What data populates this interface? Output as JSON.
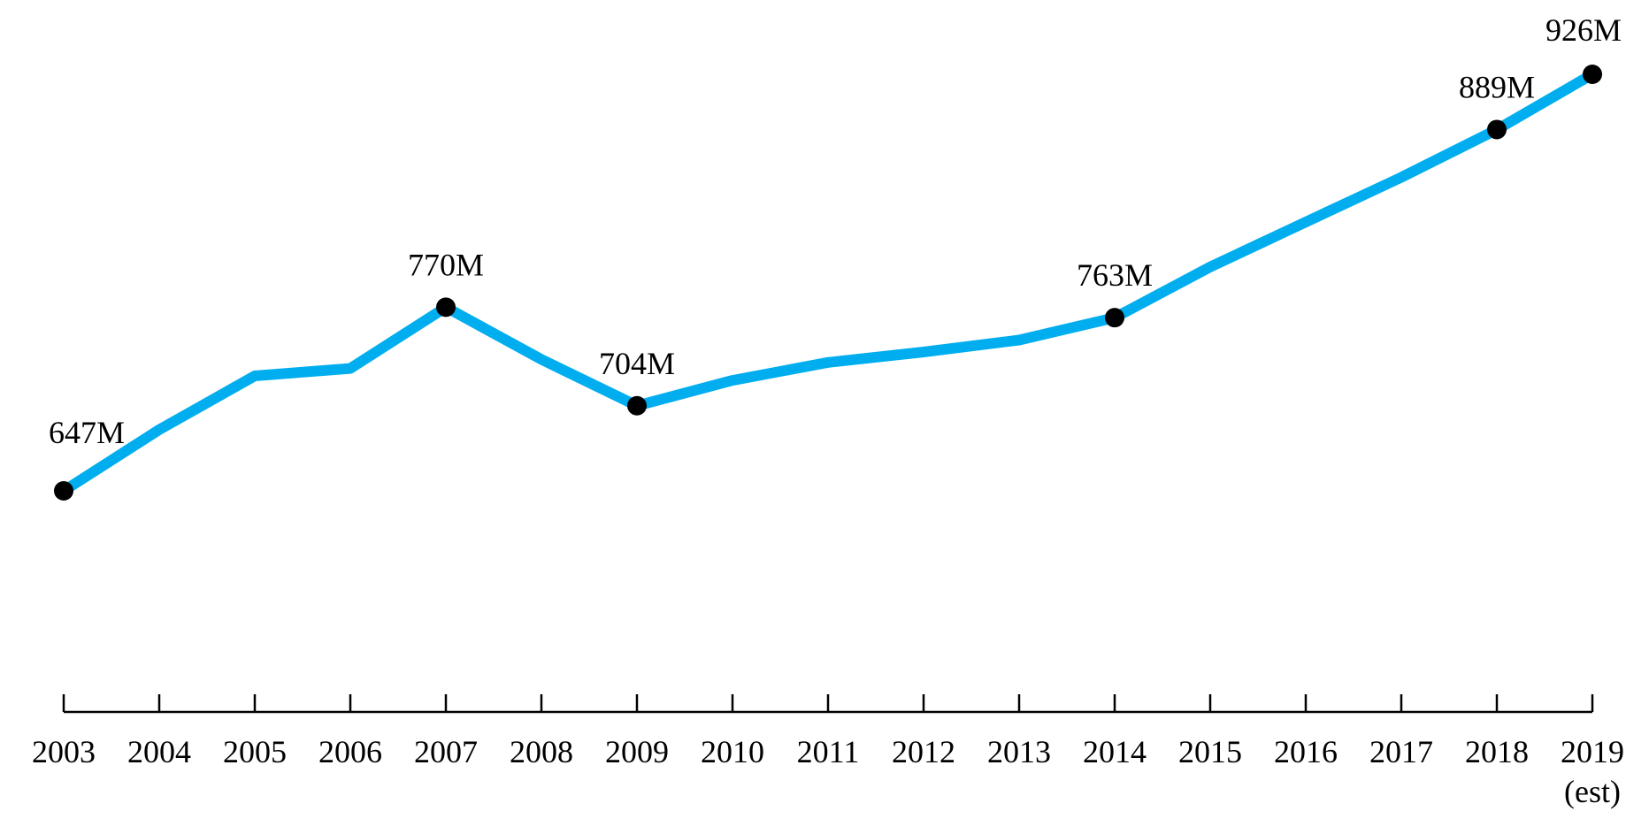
{
  "chart_data": {
    "type": "line",
    "title": "",
    "xlabel": "",
    "ylabel": "",
    "categories": [
      "2003",
      "2004",
      "2005",
      "2006",
      "2007",
      "2008",
      "2009",
      "2010",
      "2011",
      "2012",
      "2013",
      "2014",
      "2015",
      "2016",
      "2017",
      "2018",
      "2019"
    ],
    "category_sublabels": {
      "2019": "(est)"
    },
    "series": [
      {
        "values": [
          647,
          688,
          724,
          729,
          770,
          735,
          704,
          721,
          733,
          740,
          748,
          763,
          797,
          827,
          857,
          889,
          926
        ]
      }
    ],
    "data_labels": [
      {
        "category": "2003",
        "text": "647M"
      },
      {
        "category": "2007",
        "text": "770M"
      },
      {
        "category": "2009",
        "text": "704M"
      },
      {
        "category": "2014",
        "text": "763M"
      },
      {
        "category": "2018",
        "text": "889M"
      },
      {
        "category": "2019",
        "text": "926M"
      }
    ],
    "ylim": [
      580,
      960
    ],
    "grid": false,
    "legend": "none",
    "colors": {
      "line": "#00AEEF",
      "marker": "#000000",
      "axis": "#000000"
    }
  }
}
